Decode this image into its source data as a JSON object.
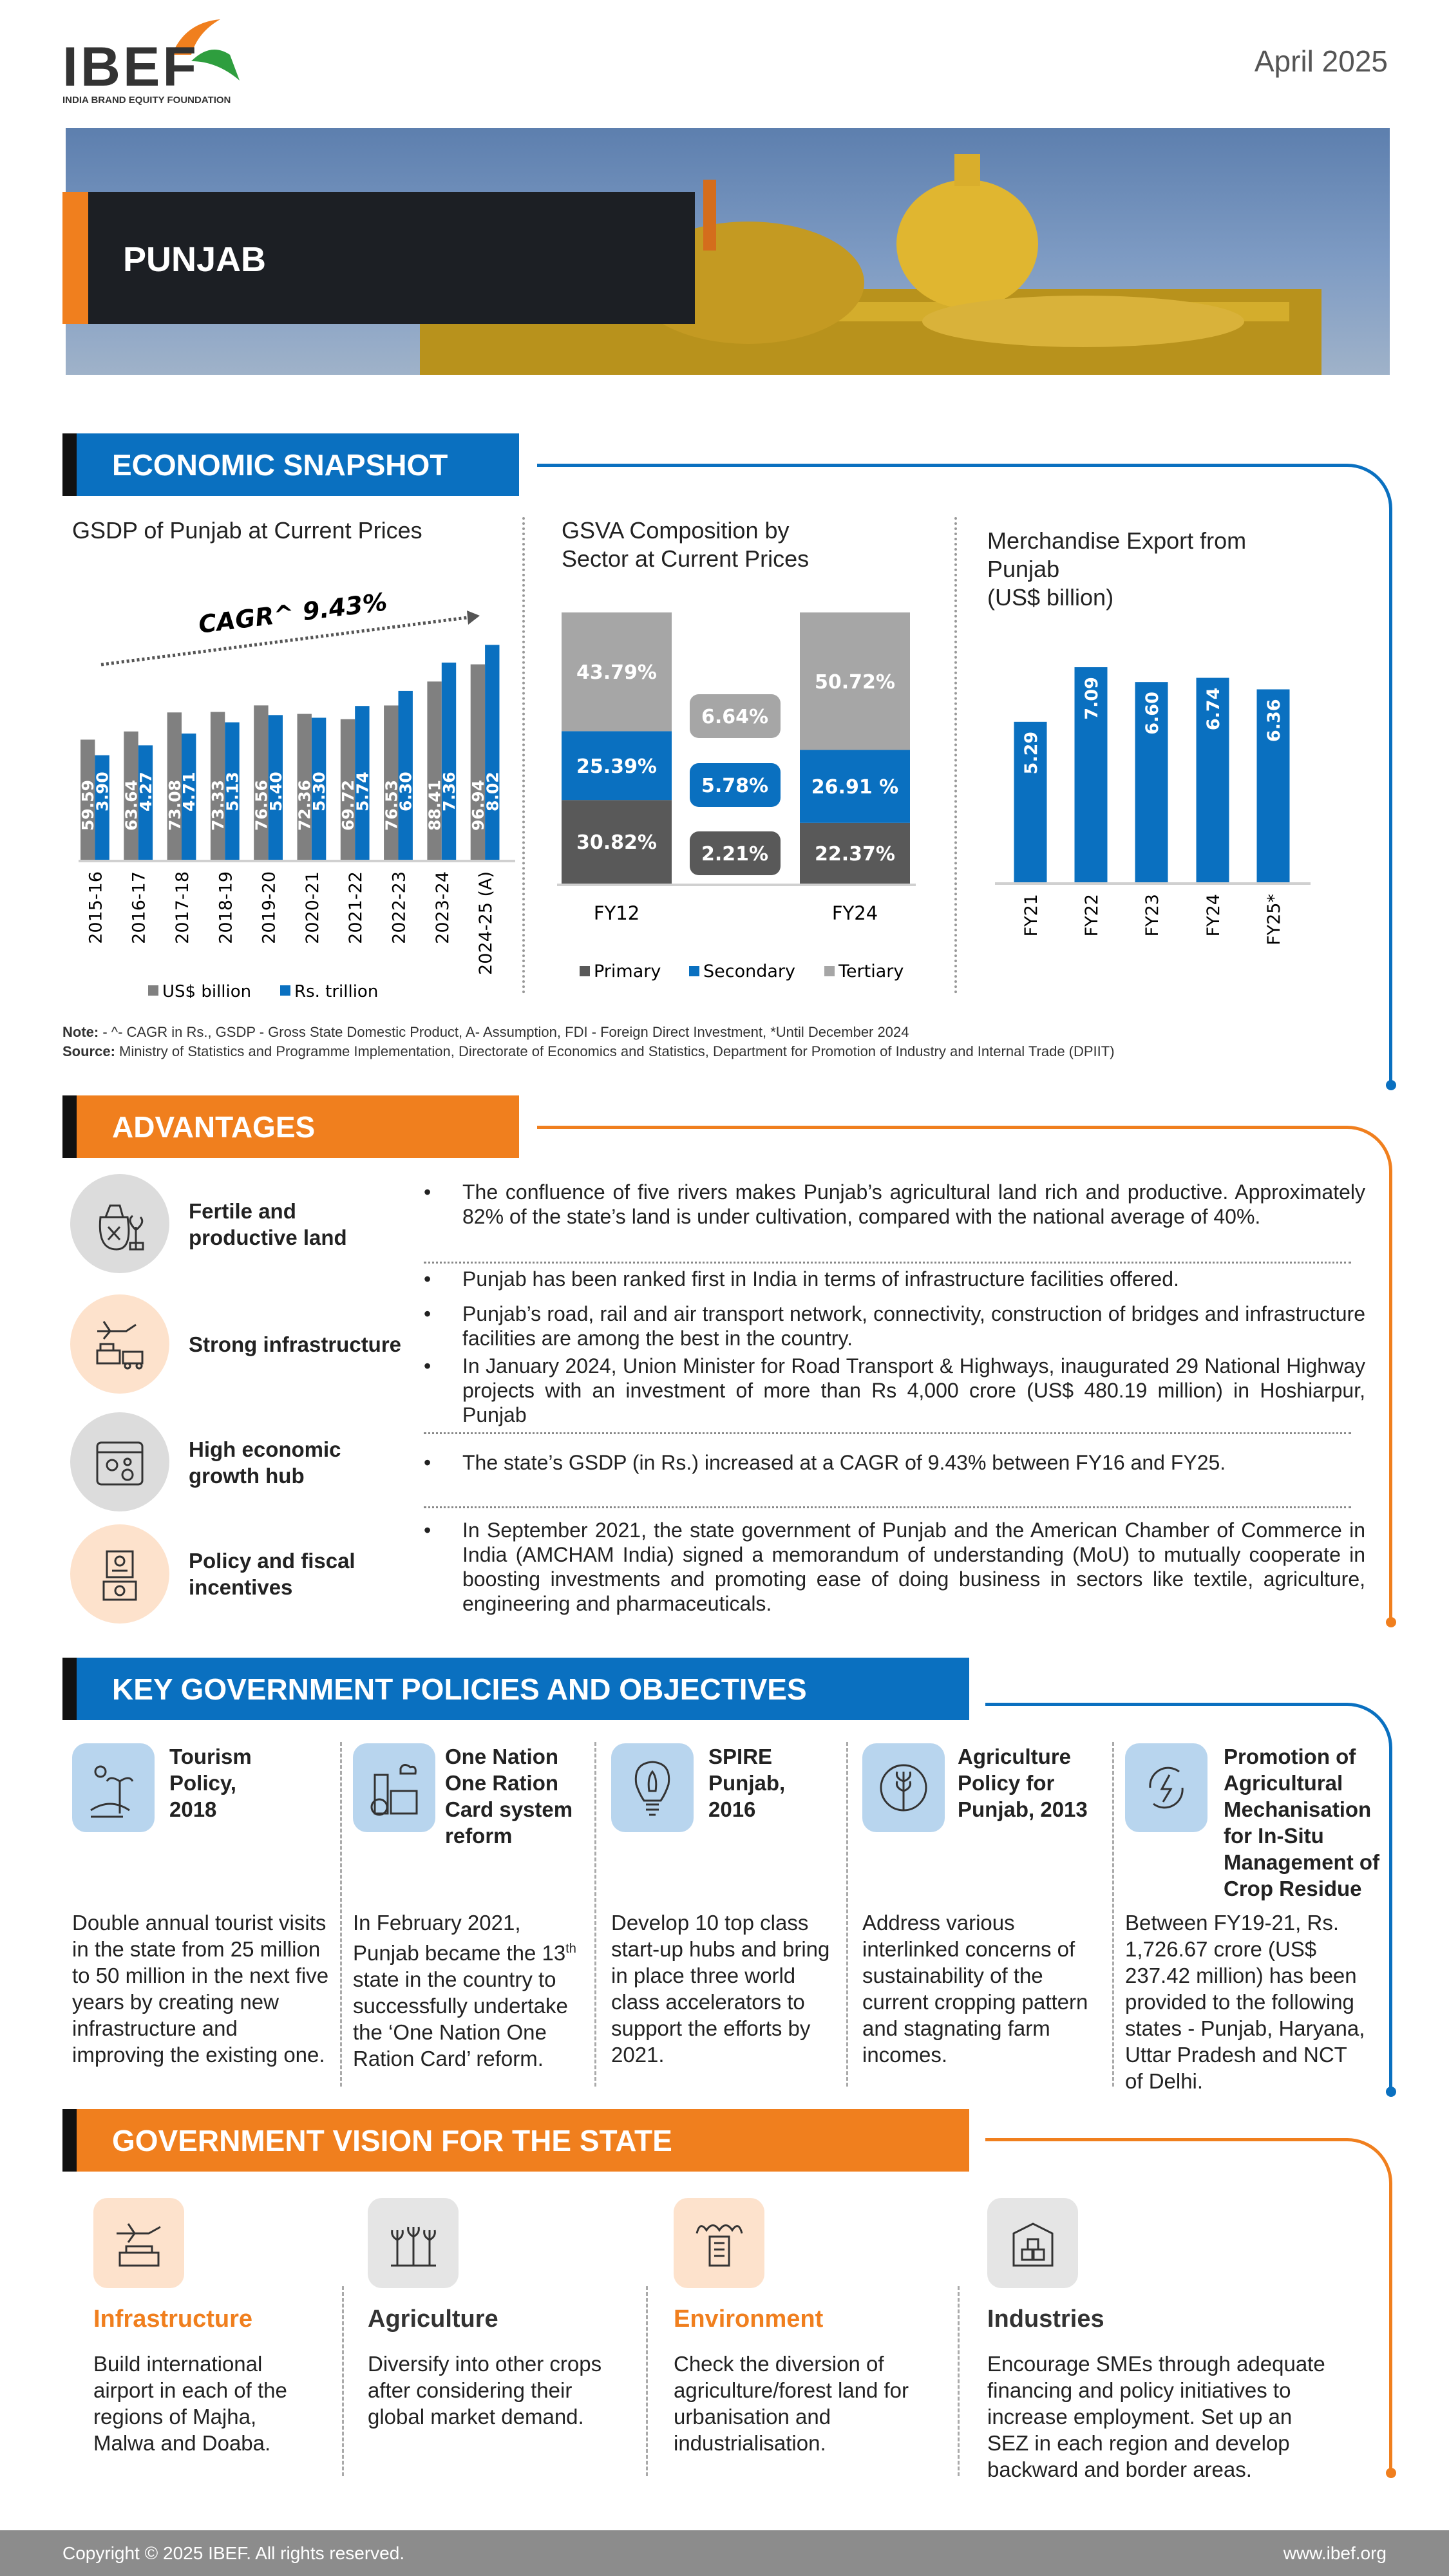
{
  "header": {
    "logo_text": "IBEF",
    "logo_subtitle": "INDIA BRAND EQUITY FOUNDATION",
    "date": "April 2025",
    "state": "PUNJAB"
  },
  "colors": {
    "blue": "#0a70c0",
    "orange": "#f07f1e",
    "dark": "#595959",
    "gray": "#808080",
    "light": "#a6a6a6"
  },
  "snapshot": {
    "heading": "ECONOMIC SNAPSHOT",
    "note_label": "Note:",
    "note": " - ^- CAGR in Rs., GSDP - Gross State Domestic Product, A- Assumption, FDI - Foreign Direct Investment, *Until December 2024",
    "source_label": "Source:",
    "source": " Ministry of Statistics and Programme Implementation, Directorate of Economics and Statistics, Department for Promotion of Industry and Internal Trade (DPIIT)"
  },
  "chart_data": [
    {
      "type": "bar",
      "title": "GSDP of Punjab at Current Prices",
      "annotation": "CAGR^ 9.43%",
      "categories": [
        "2015-16",
        "2016-17",
        "2017-18",
        "2018-19",
        "2019-20",
        "2020-21",
        "2021-22",
        "2022-23",
        "2023-24",
        "2024-25 (A)"
      ],
      "series": [
        {
          "name": "US$ billion",
          "values": [
            59.59,
            63.64,
            73.08,
            73.33,
            76.56,
            72.36,
            69.72,
            76.53,
            88.41,
            96.94
          ]
        },
        {
          "name": "Rs. trillion",
          "values": [
            3.9,
            4.27,
            4.71,
            5.13,
            5.4,
            5.3,
            5.74,
            6.3,
            7.36,
            8.02
          ]
        }
      ],
      "legend": "bottom"
    },
    {
      "type": "bar",
      "stacked": true,
      "title": "GSVA Composition by Sector at Current Prices",
      "title_lines": [
        "GSVA Composition by",
        "Sector at Current Prices"
      ],
      "categories": [
        "FY12",
        "FY24"
      ],
      "series": [
        {
          "name": "Primary",
          "values": [
            30.82,
            22.37
          ],
          "change": "2.21%"
        },
        {
          "name": "Secondary",
          "values": [
            25.39,
            26.91
          ],
          "change": "5.78%"
        },
        {
          "name": "Tertiary",
          "values": [
            43.79,
            50.72
          ],
          "change": "6.64%"
        }
      ],
      "labels": {
        "FY12": [
          "30.82%",
          "25.39%",
          "43.79%"
        ],
        "FY24": [
          "22.37%",
          "26.91 %",
          "50.72%"
        ]
      },
      "legend": "bottom"
    },
    {
      "type": "bar",
      "title": "Merchandise Export from Punjab (US$ billion)",
      "title_lines": [
        "Merchandise Export from",
        "Punjab",
        "(US$ billion)"
      ],
      "categories": [
        "FY21",
        "FY22",
        "FY23",
        "FY24",
        "FY25*"
      ],
      "values": [
        5.29,
        7.09,
        6.6,
        6.74,
        6.36
      ],
      "ylim": [
        0,
        8
      ]
    }
  ],
  "advantages": {
    "heading": "ADVANTAGES",
    "items": [
      {
        "label": "Fertile and productive land",
        "bullets": [
          "The confluence of five rivers makes Punjab’s agricultural land rich and productive. Approximately 82% of the state’s land is under cultivation, compared with the national average of 40%."
        ]
      },
      {
        "label": "Strong infrastructure",
        "bullets": [
          "Punjab has been ranked first in India in terms of infrastructure facilities offered.",
          "Punjab’s road, rail and air transport network, connectivity, construction of bridges and infrastructure facilities are among the best in the country.",
          "In January 2024, Union Minister for Road Transport & Highways, inaugurated 29 National Highway projects with an investment of more than Rs 4,000 crore (US$ 480.19 million) in Hoshiarpur, Punjab"
        ]
      },
      {
        "label": "High economic growth hub",
        "bullets": [
          "The state’s GSDP (in Rs.) increased at a CAGR of 9.43% between FY16 and FY25."
        ]
      },
      {
        "label": "Policy and fiscal incentives",
        "bullets": [
          "In September 2021, the state government of Punjab and the American Chamber of Commerce in India (AMCHAM India) signed a memorandum of understanding (MoU) to mutually cooperate in boosting investments and promoting ease of doing business in sectors like textile, agriculture, engineering and pharmaceuticals."
        ]
      }
    ]
  },
  "policies": {
    "heading": "KEY GOVERNMENT POLICIES AND OBJECTIVES",
    "items": [
      {
        "title": "Tourism Policy, 2018",
        "desc": "Double annual tourist visits in the state from 25 million to 50 million in the next five years by creating new infrastructure and improving the existing one."
      },
      {
        "title": "One Nation One Ration Card system reform",
        "desc_a": "In February 2021, Punjab became the 13",
        "desc_sup": "th",
        "desc_b": " state in the country to successfully undertake the ‘One Nation One Ration Card’ reform."
      },
      {
        "title": "SPIRE Punjab, 2016",
        "desc": "Develop 10 top class start-up hubs and bring in place three world class accelerators to support the efforts by 2021."
      },
      {
        "title": "Agriculture Policy for Punjab, 2013",
        "desc": "Address various interlinked concerns of sustainability of the current cropping pattern and stagnating farm incomes."
      },
      {
        "title": "Promotion of Agricultural Mechanisation for In-Situ Management of Crop Residue",
        "desc": "Between FY19-21, Rs. 1,726.67 crore (US$ 237.42 million) has been provided to the following states - Punjab, Haryana, Uttar Pradesh and NCT of Delhi."
      }
    ]
  },
  "vision": {
    "heading": "GOVERNMENT VISION FOR THE STATE",
    "items": [
      {
        "title": "Infrastructure",
        "desc": "Build international airport in each of the regions of Majha, Malwa and Doaba."
      },
      {
        "title": "Agriculture",
        "desc": "Diversify into other crops after considering their global market demand."
      },
      {
        "title": "Environment",
        "desc": "Check the diversion of agriculture/forest land for urbanisation and industrialisation."
      },
      {
        "title": "Industries",
        "desc": "Encourage SMEs through adequate financing and policy initiatives to increase employment. Set up an SEZ in each region and develop backward and border areas."
      }
    ]
  },
  "footer": {
    "copyright": "Copyright © 2025 IBEF. All rights reserved.",
    "url": "www.ibef.org"
  }
}
